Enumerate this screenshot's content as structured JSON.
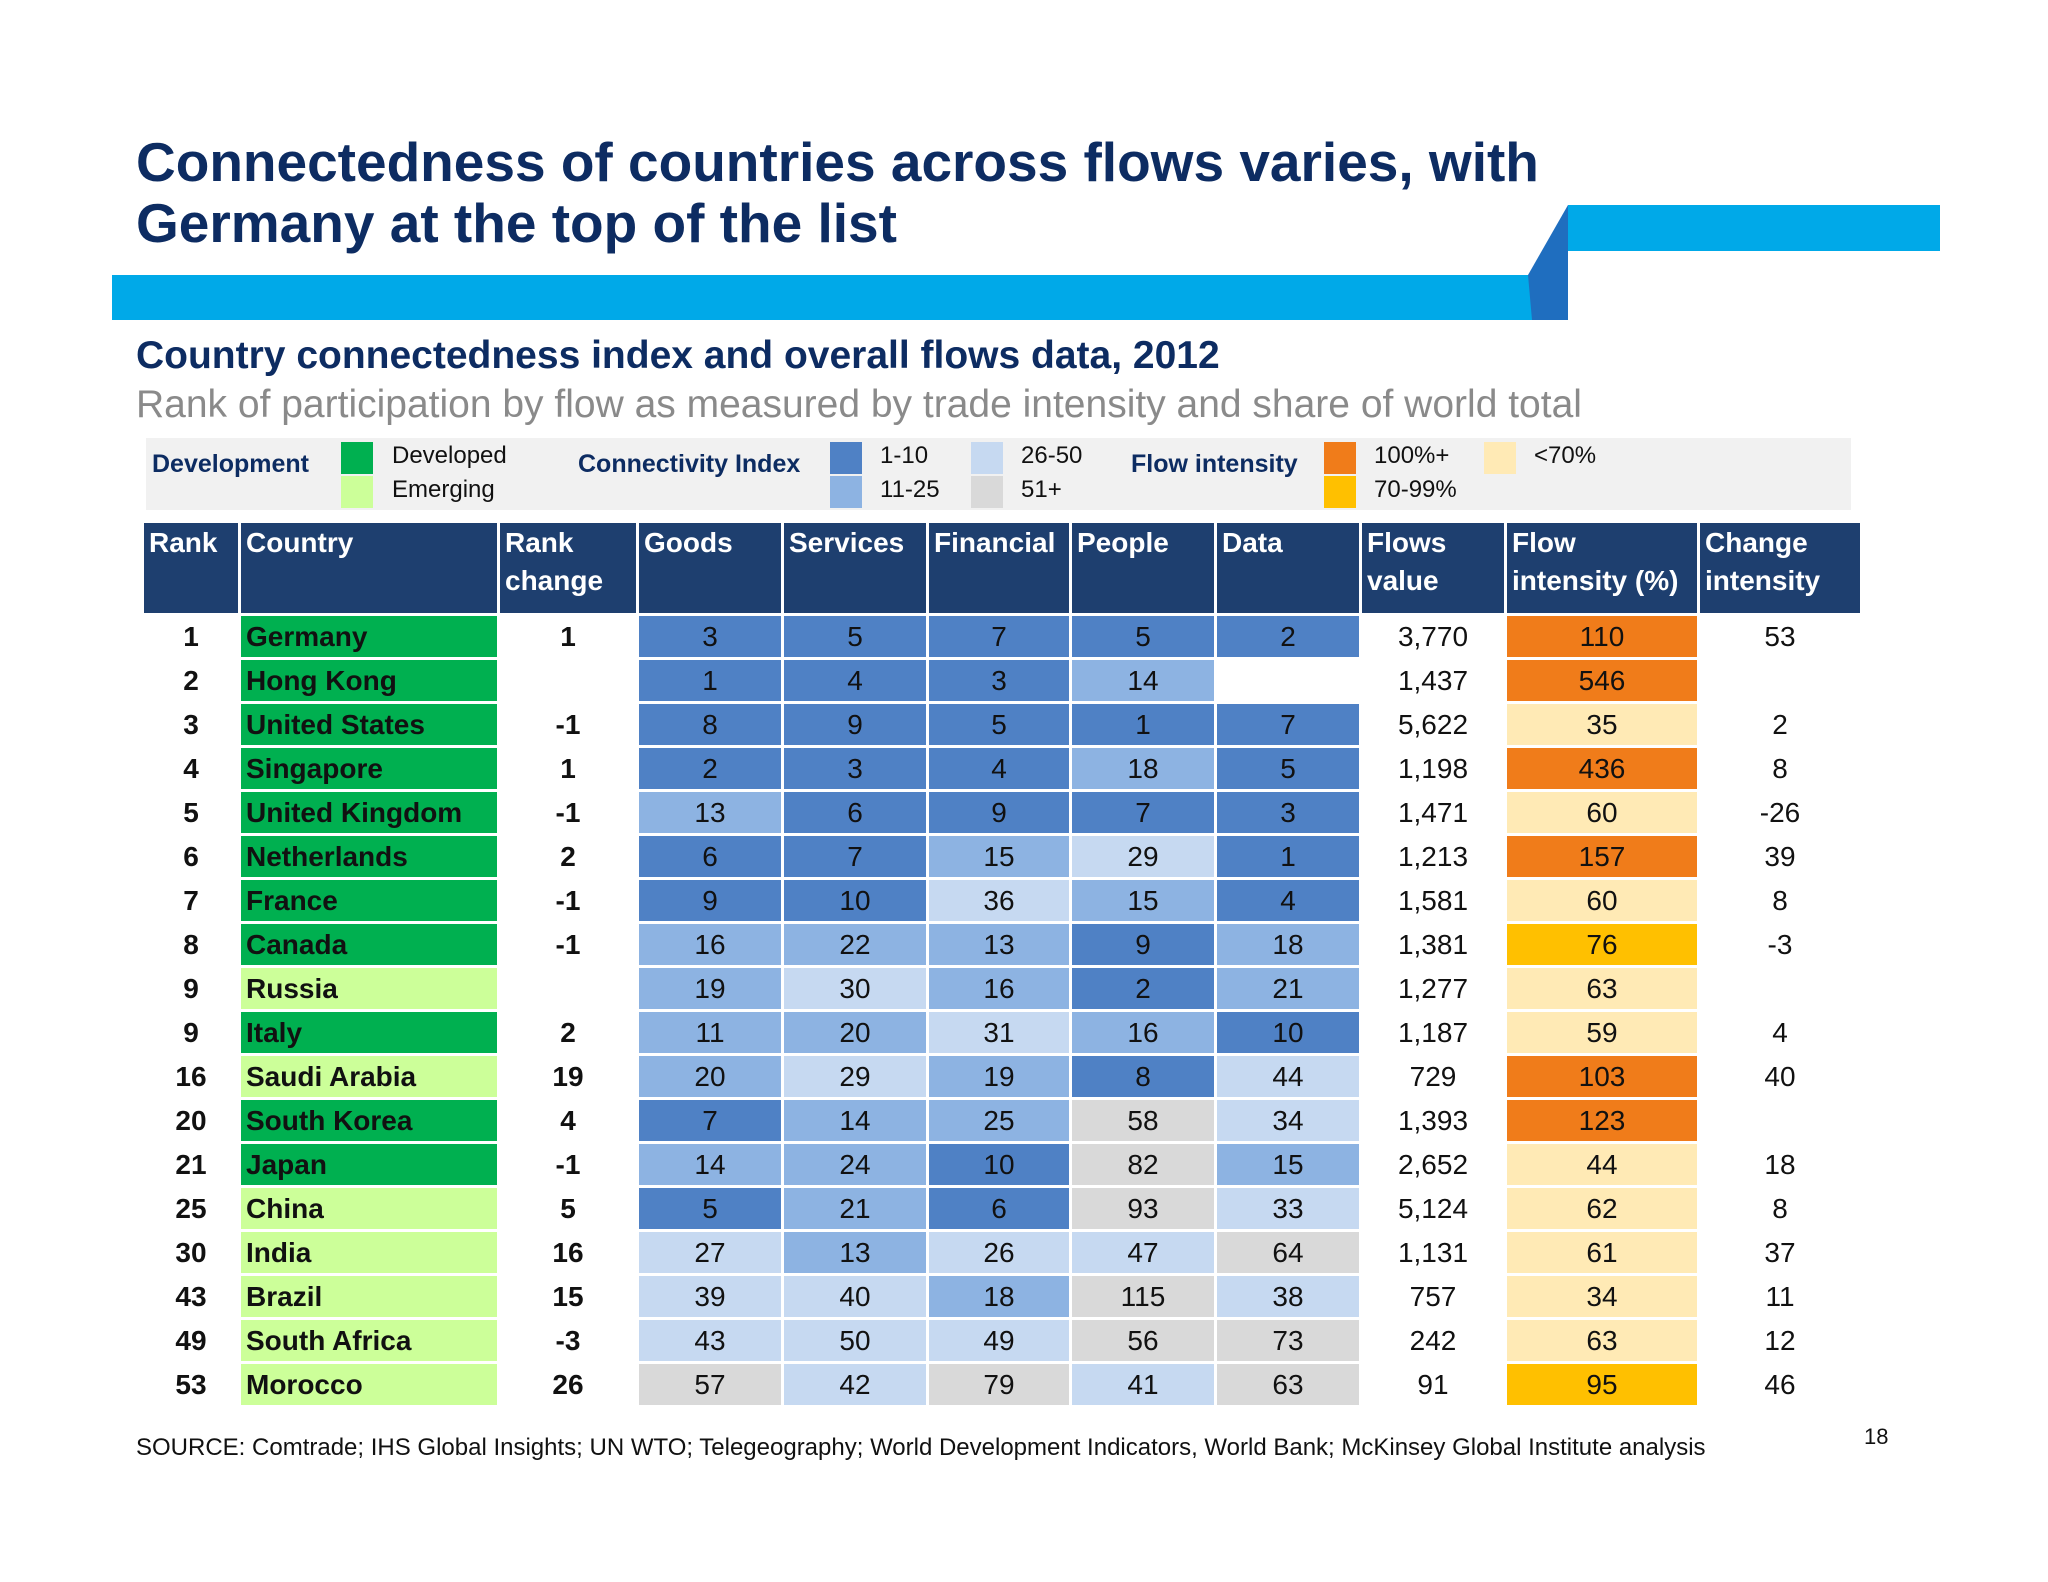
{
  "title": "Connectedness of countries across flows varies, with Germany at the top of the list",
  "subtitle": "Country connectedness index and overall flows data, 2012",
  "caption": "Rank of participation by flow as measured by trade intensity and share of world total",
  "legend": {
    "development": {
      "label": "Development",
      "items": [
        {
          "label": "Developed",
          "color": "#00b050"
        },
        {
          "label": "Emerging",
          "color": "#ccff99"
        }
      ]
    },
    "connectivity": {
      "label": "Connectivity Index",
      "items": [
        {
          "label": "1-10",
          "color": "#4f81c5"
        },
        {
          "label": "11-25",
          "color": "#8db3e2"
        },
        {
          "label": "26-50",
          "color": "#c6d9f1"
        },
        {
          "label": "51+",
          "color": "#d9d9d9"
        }
      ]
    },
    "flow_intensity": {
      "label": "Flow intensity",
      "items": [
        {
          "label": "100%+",
          "color": "#f07c1a"
        },
        {
          "label": "70-99%",
          "color": "#ffc000"
        },
        {
          "label": "<70%",
          "color": "#ffeab5"
        }
      ]
    }
  },
  "columns": [
    "Rank",
    "Country",
    "Rank change",
    "Goods",
    "Services",
    "Financial",
    "People",
    "Data",
    "Flows value",
    "Flow intensity (%)",
    "Change intensity"
  ],
  "rows": [
    {
      "rank": "1",
      "country": "Germany",
      "dev": "developed",
      "rank_change": "1",
      "goods": "3",
      "services": "5",
      "financial": "7",
      "people": "5",
      "data": "2",
      "flows_value": "3,770",
      "flow_intensity": "110",
      "change_intensity": "53"
    },
    {
      "rank": "2",
      "country": "Hong Kong",
      "dev": "developed",
      "rank_change": "",
      "goods": "1",
      "services": "4",
      "financial": "3",
      "people": "14",
      "data": "",
      "flows_value": "1,437",
      "flow_intensity": "546",
      "change_intensity": ""
    },
    {
      "rank": "3",
      "country": "United States",
      "dev": "developed",
      "rank_change": "-1",
      "goods": "8",
      "services": "9",
      "financial": "5",
      "people": "1",
      "data": "7",
      "flows_value": "5,622",
      "flow_intensity": "35",
      "change_intensity": "2"
    },
    {
      "rank": "4",
      "country": "Singapore",
      "dev": "developed",
      "rank_change": "1",
      "goods": "2",
      "services": "3",
      "financial": "4",
      "people": "18",
      "data": "5",
      "flows_value": "1,198",
      "flow_intensity": "436",
      "change_intensity": "8"
    },
    {
      "rank": "5",
      "country": "United Kingdom",
      "dev": "developed",
      "rank_change": "-1",
      "goods": "13",
      "services": "6",
      "financial": "9",
      "people": "7",
      "data": "3",
      "flows_value": "1,471",
      "flow_intensity": "60",
      "change_intensity": "-26"
    },
    {
      "rank": "6",
      "country": "Netherlands",
      "dev": "developed",
      "rank_change": "2",
      "goods": "6",
      "services": "7",
      "financial": "15",
      "people": "29",
      "data": "1",
      "flows_value": "1,213",
      "flow_intensity": "157",
      "change_intensity": "39"
    },
    {
      "rank": "7",
      "country": "France",
      "dev": "developed",
      "rank_change": "-1",
      "goods": "9",
      "services": "10",
      "financial": "36",
      "people": "15",
      "data": "4",
      "flows_value": "1,581",
      "flow_intensity": "60",
      "change_intensity": "8"
    },
    {
      "rank": "8",
      "country": "Canada",
      "dev": "developed",
      "rank_change": "-1",
      "goods": "16",
      "services": "22",
      "financial": "13",
      "people": "9",
      "data": "18",
      "flows_value": "1,381",
      "flow_intensity": "76",
      "change_intensity": "-3"
    },
    {
      "rank": "9",
      "country": "Russia",
      "dev": "emerging",
      "rank_change": "",
      "goods": "19",
      "services": "30",
      "financial": "16",
      "people": "2",
      "data": "21",
      "flows_value": "1,277",
      "flow_intensity": "63",
      "change_intensity": ""
    },
    {
      "rank": "9",
      "country": "Italy",
      "dev": "developed",
      "rank_change": "2",
      "goods": "11",
      "services": "20",
      "financial": "31",
      "people": "16",
      "data": "10",
      "flows_value": "1,187",
      "flow_intensity": "59",
      "change_intensity": "4"
    },
    {
      "rank": "16",
      "country": "Saudi Arabia",
      "dev": "emerging",
      "rank_change": "19",
      "goods": "20",
      "services": "29",
      "financial": "19",
      "people": "8",
      "data": "44",
      "flows_value": "729",
      "flow_intensity": "103",
      "change_intensity": "40"
    },
    {
      "rank": "20",
      "country": "South Korea",
      "dev": "developed",
      "rank_change": "4",
      "goods": "7",
      "services": "14",
      "financial": "25",
      "people": "58",
      "data": "34",
      "flows_value": "1,393",
      "flow_intensity": "123",
      "change_intensity": ""
    },
    {
      "rank": "21",
      "country": "Japan",
      "dev": "developed",
      "rank_change": "-1",
      "goods": "14",
      "services": "24",
      "financial": "10",
      "people": "82",
      "data": "15",
      "flows_value": "2,652",
      "flow_intensity": "44",
      "change_intensity": "18"
    },
    {
      "rank": "25",
      "country": "China",
      "dev": "emerging",
      "rank_change": "5",
      "goods": "5",
      "services": "21",
      "financial": "6",
      "people": "93",
      "data": "33",
      "flows_value": "5,124",
      "flow_intensity": "62",
      "change_intensity": "8"
    },
    {
      "rank": "30",
      "country": "India",
      "dev": "emerging",
      "rank_change": "16",
      "goods": "27",
      "services": "13",
      "financial": "26",
      "people": "47",
      "data": "64",
      "flows_value": "1,131",
      "flow_intensity": "61",
      "change_intensity": "37"
    },
    {
      "rank": "43",
      "country": "Brazil",
      "dev": "emerging",
      "rank_change": "15",
      "goods": "39",
      "services": "40",
      "financial": "18",
      "people": "115",
      "data": "38",
      "flows_value": "757",
      "flow_intensity": "34",
      "change_intensity": "11"
    },
    {
      "rank": "49",
      "country": "South Africa",
      "dev": "emerging",
      "rank_change": "-3",
      "goods": "43",
      "services": "50",
      "financial": "49",
      "people": "56",
      "data": "73",
      "flows_value": "242",
      "flow_intensity": "63",
      "change_intensity": "12"
    },
    {
      "rank": "53",
      "country": "Morocco",
      "dev": "emerging",
      "rank_change": "26",
      "goods": "57",
      "services": "42",
      "financial": "79",
      "people": "41",
      "data": "63",
      "flows_value": "91",
      "flow_intensity": "95",
      "change_intensity": "46"
    }
  ],
  "source": "SOURCE: Comtrade; IHS Global Insights; UN WTO; Telegeography; World Development Indicators, World Bank; McKinsey Global Institute analysis",
  "page_number": "18"
}
